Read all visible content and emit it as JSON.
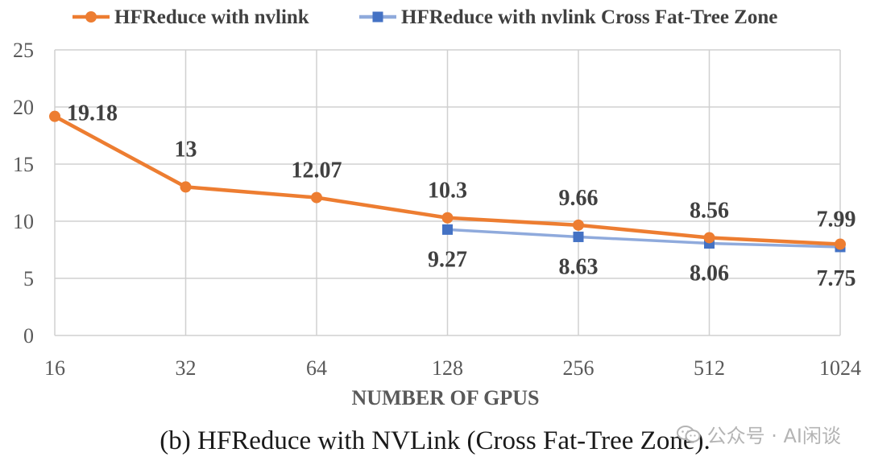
{
  "chart_data": {
    "type": "line",
    "categories": [
      "16",
      "32",
      "64",
      "128",
      "256",
      "512",
      "1024"
    ],
    "series": [
      {
        "name": "HFReduce with nvlink",
        "color": "#ED7D31",
        "marker": "circle",
        "values": [
          19.18,
          13,
          12.07,
          10.3,
          9.66,
          8.56,
          7.99
        ],
        "labels": [
          "19.18",
          "13",
          "12.07",
          "10.3",
          "9.66",
          "8.56",
          "7.99"
        ]
      },
      {
        "name": "HFReduce with nvlink Cross Fat-Tree Zone",
        "color": "#4472C4",
        "line_color": "#8FAADC",
        "marker": "square",
        "values": [
          null,
          null,
          null,
          9.27,
          8.63,
          8.06,
          7.75
        ],
        "labels": [
          null,
          null,
          null,
          "9.27",
          "8.63",
          "8.06",
          "7.75"
        ]
      }
    ],
    "yticks": [
      "0",
      "5",
      "10",
      "15",
      "20",
      "25"
    ],
    "ylim": [
      0,
      25
    ],
    "xlabel": "NUMBER OF GPUS",
    "ylabel": "",
    "grid": true,
    "legend": "top"
  },
  "caption": "(b) HFReduce with NVLink (Cross Fat-Tree Zone).",
  "watermark": "公众号 · AI闲谈"
}
